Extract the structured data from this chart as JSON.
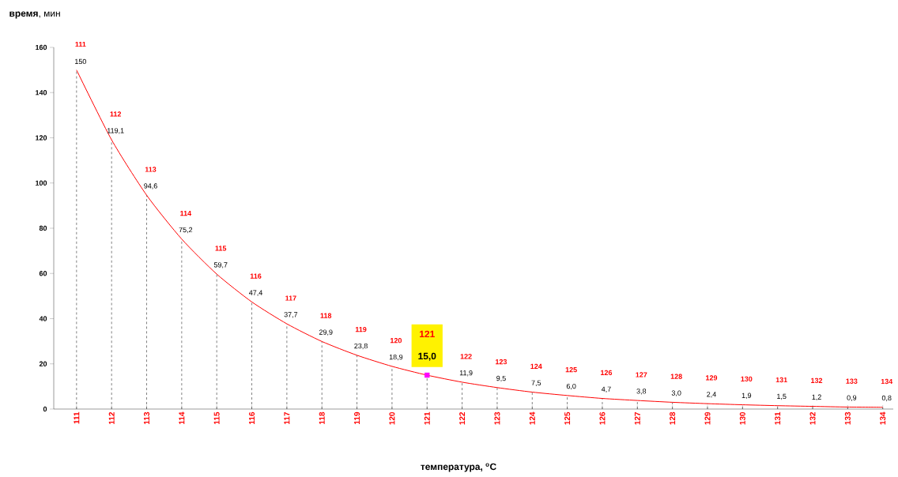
{
  "chart_data": {
    "type": "line",
    "xlabel": "температура, $^{o}$C",
    "ylabel": "**время**, мин",
    "categories": [
      "111",
      "112",
      "113",
      "114",
      "115",
      "116",
      "117",
      "118",
      "119",
      "120",
      "121",
      "122",
      "123",
      "124",
      "125",
      "126",
      "127",
      "128",
      "129",
      "130",
      "131",
      "132",
      "133",
      "134"
    ],
    "series": [
      {
        "color": "#ff0000",
        "marker": "none",
        "line_style": "solid",
        "values": [
          150,
          119.1,
          94.6,
          75.2,
          59.7,
          47.4,
          37.7,
          29.9,
          23.8,
          18.9,
          15.0,
          11.9,
          9.5,
          7.5,
          6.0,
          4.7,
          3.8,
          3.0,
          2.4,
          1.9,
          1.5,
          1.2,
          0.9,
          0.8
        ],
        "value_labels": [
          "150",
          "119,1",
          "94,6",
          "75,2",
          "59,7",
          "47,4",
          "37,7",
          "29,9",
          "23,8",
          "18,9",
          "15,0",
          "11,9",
          "9,5",
          "7,5",
          "6,0",
          "4,7",
          "3,8",
          "3,0",
          "2,4",
          "1,9",
          "1,5",
          "1,2",
          "0,9",
          "0,8"
        ]
      },
      {
        "type": "scatter",
        "color": "#ff00ff",
        "marker": "square",
        "x": [
          "121"
        ],
        "values": [
          15.0
        ]
      }
    ],
    "ylim": [
      0,
      160
    ],
    "yticks": [
      0,
      20,
      40,
      60,
      80,
      100,
      120,
      140,
      160
    ],
    "grid": "x"
  }
}
